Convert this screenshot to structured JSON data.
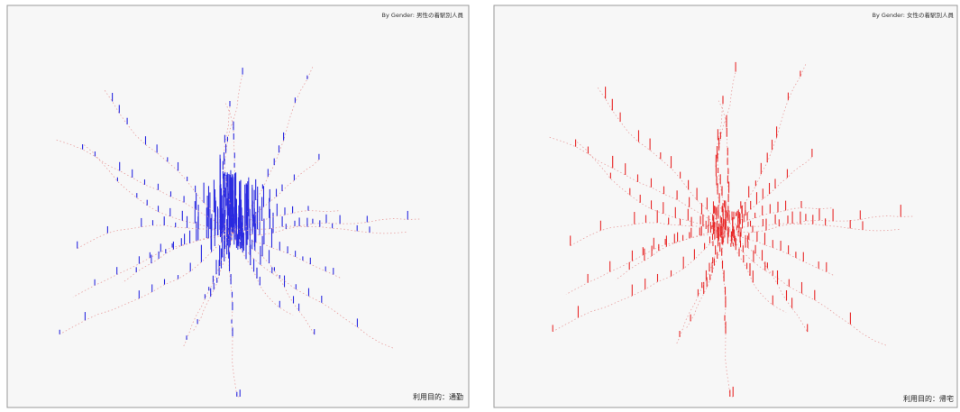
{
  "panels": [
    {
      "title": "By Gender: 男性の着駅別人員",
      "caption": "利用目的：通勤",
      "bar_color": "#2a2ae0"
    },
    {
      "title": "By Gender: 女性の着駅別人員",
      "caption": "利用目的：帰宅",
      "bar_color": "#e82a2a"
    }
  ]
}
